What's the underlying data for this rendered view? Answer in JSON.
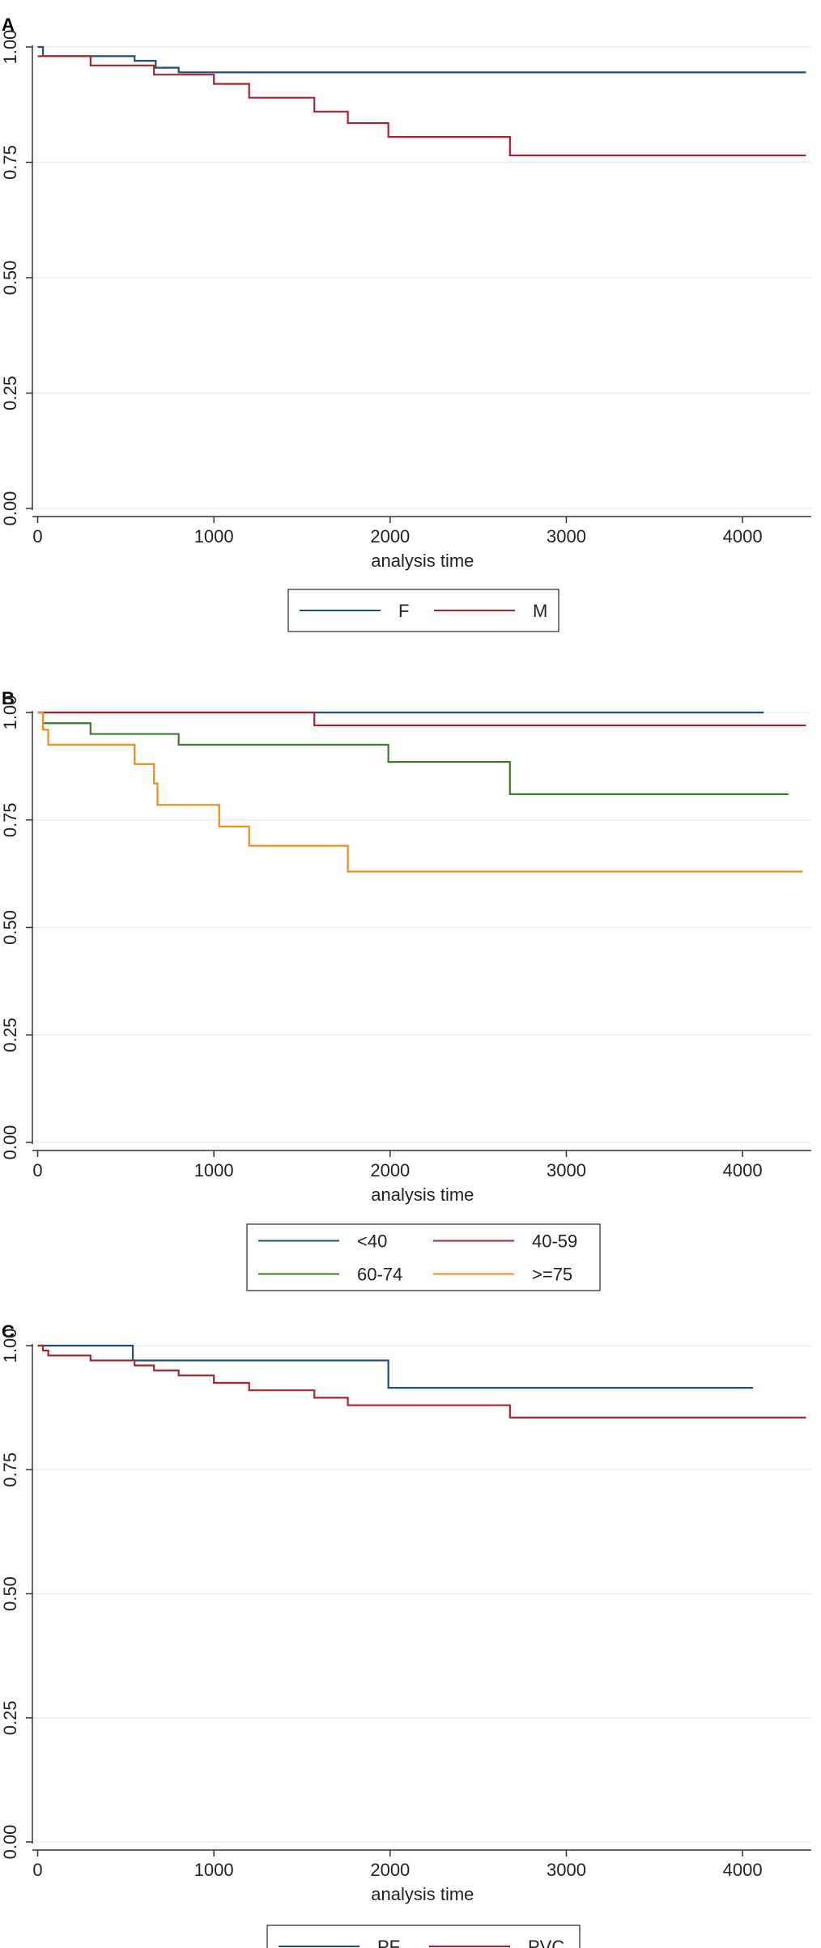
{
  "chart_data": [
    {
      "panel": "A",
      "type": "line",
      "step": true,
      "xlabel": "analysis time",
      "ylabel": "",
      "xlim": [
        -30,
        4390
      ],
      "ylim": [
        0,
        1.0
      ],
      "xticks": [
        "0",
        "1000",
        "2000",
        "3000",
        "4000"
      ],
      "yticks": [
        "0.00",
        "0.25",
        "0.50",
        "0.75",
        "1.00"
      ],
      "grid": true,
      "legend_position": "bottom",
      "legend_columns": 2,
      "series": [
        {
          "name": "F",
          "color": "#1f4e79",
          "x": [
            0,
            30,
            550,
            670,
            800,
            4360
          ],
          "y": [
            1.0,
            0.98,
            0.97,
            0.955,
            0.945,
            0.945
          ]
        },
        {
          "name": "M",
          "color": "#a82430",
          "x": [
            0,
            60,
            300,
            660,
            1000,
            1200,
            1570,
            1760,
            1990,
            2680,
            4360
          ],
          "y": [
            0.98,
            0.98,
            0.96,
            0.94,
            0.92,
            0.89,
            0.86,
            0.835,
            0.805,
            0.765,
            0.765
          ]
        }
      ]
    },
    {
      "panel": "B",
      "type": "line",
      "step": true,
      "xlabel": "analysis time",
      "ylabel": "",
      "xlim": [
        -30,
        4390
      ],
      "ylim": [
        0,
        1.0
      ],
      "xticks": [
        "0",
        "1000",
        "2000",
        "3000",
        "4000"
      ],
      "yticks": [
        "0.00",
        "0.25",
        "0.50",
        "0.75",
        "1.00"
      ],
      "grid": true,
      "legend_position": "bottom",
      "legend_columns": 2,
      "series": [
        {
          "name": "<40",
          "color": "#1f4e79",
          "x": [
            0,
            4120
          ],
          "y": [
            1.0,
            1.0
          ]
        },
        {
          "name": "40-59",
          "color": "#a82430",
          "x": [
            0,
            1570,
            4360
          ],
          "y": [
            1.0,
            0.97,
            0.97
          ]
        },
        {
          "name": "60-74",
          "color": "#3d7a2e",
          "x": [
            0,
            30,
            300,
            800,
            1990,
            2680,
            4260
          ],
          "y": [
            1.0,
            0.975,
            0.95,
            0.925,
            0.885,
            0.81,
            0.81
          ]
        },
        {
          "name": ">=75",
          "color": "#f28c1e",
          "x": [
            0,
            30,
            60,
            550,
            660,
            680,
            1030,
            1200,
            1760,
            4340
          ],
          "y": [
            1.0,
            0.96,
            0.925,
            0.88,
            0.835,
            0.785,
            0.735,
            0.69,
            0.63,
            0.63
          ]
        }
      ]
    },
    {
      "panel": "C",
      "type": "line",
      "step": true,
      "xlabel": "analysis time",
      "ylabel": "",
      "xlim": [
        -30,
        4390
      ],
      "ylim": [
        0,
        1.0
      ],
      "xticks": [
        "0",
        "1000",
        "2000",
        "3000",
        "4000"
      ],
      "yticks": [
        "0.00",
        "0.25",
        "0.50",
        "0.75",
        "1.00"
      ],
      "grid": true,
      "legend_position": "bottom",
      "legend_columns": 2,
      "series": [
        {
          "name": "PF",
          "color": "#1f4e79",
          "x": [
            0,
            540,
            1990,
            4060
          ],
          "y": [
            1.0,
            0.97,
            0.915,
            0.915
          ]
        },
        {
          "name": "PVC",
          "color": "#a82430",
          "x": [
            0,
            30,
            60,
            300,
            550,
            660,
            800,
            1000,
            1200,
            1570,
            1760,
            2680,
            4360
          ],
          "y": [
            1.0,
            0.99,
            0.98,
            0.97,
            0.96,
            0.95,
            0.94,
            0.925,
            0.91,
            0.895,
            0.88,
            0.855,
            0.855
          ]
        }
      ]
    }
  ]
}
